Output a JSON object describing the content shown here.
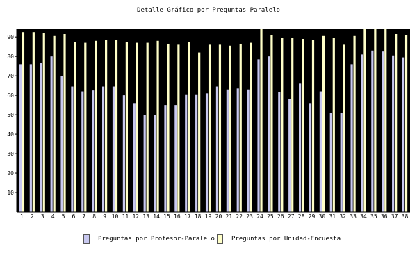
{
  "chart_data": {
    "type": "bar",
    "title": "Detalle Gráfico por Preguntas Paralelo",
    "xlabel": "",
    "ylabel": "",
    "ylim": [
      0,
      94
    ],
    "yticks": [
      10,
      20,
      30,
      40,
      50,
      60,
      70,
      80,
      90
    ],
    "grid": false,
    "legend_position": "bottom",
    "categories": [
      "1",
      "2",
      "3",
      "4",
      "5",
      "6",
      "7",
      "8",
      "9",
      "10",
      "11",
      "12",
      "13",
      "14",
      "15",
      "16",
      "17",
      "18",
      "19",
      "20",
      "21",
      "22",
      "23",
      "24",
      "25",
      "26",
      "27",
      "28",
      "29",
      "30",
      "31",
      "32",
      "33",
      "34",
      "35",
      "36",
      "37",
      "38"
    ],
    "series": [
      {
        "name": "Preguntas por Profesor-Paralelo",
        "color": "#c8c8f0",
        "values": [
          76,
          76,
          76.5,
          80,
          70,
          64.5,
          62,
          62.5,
          64.5,
          64.5,
          60,
          56,
          50,
          50,
          55,
          55,
          60.5,
          60.5,
          61,
          64.5,
          63,
          63.5,
          63,
          78.5,
          80,
          61.5,
          58,
          66,
          56,
          62,
          51,
          51,
          76,
          81,
          83,
          82.5,
          80.5,
          79.5
        ]
      },
      {
        "name": "Preguntas por Unidad-Encuesta",
        "color": "#ffffc8",
        "values": [
          92.5,
          92.5,
          92,
          90.5,
          91.5,
          87.5,
          87,
          88,
          88.5,
          88.5,
          87.5,
          87,
          87,
          88,
          86.5,
          86,
          87.5,
          82,
          86,
          86,
          85.5,
          86.5,
          87,
          94,
          91,
          89.5,
          89.5,
          89,
          88.5,
          90.5,
          89.5,
          86,
          90.5,
          94,
          94,
          94,
          91.5,
          91
        ]
      }
    ]
  }
}
